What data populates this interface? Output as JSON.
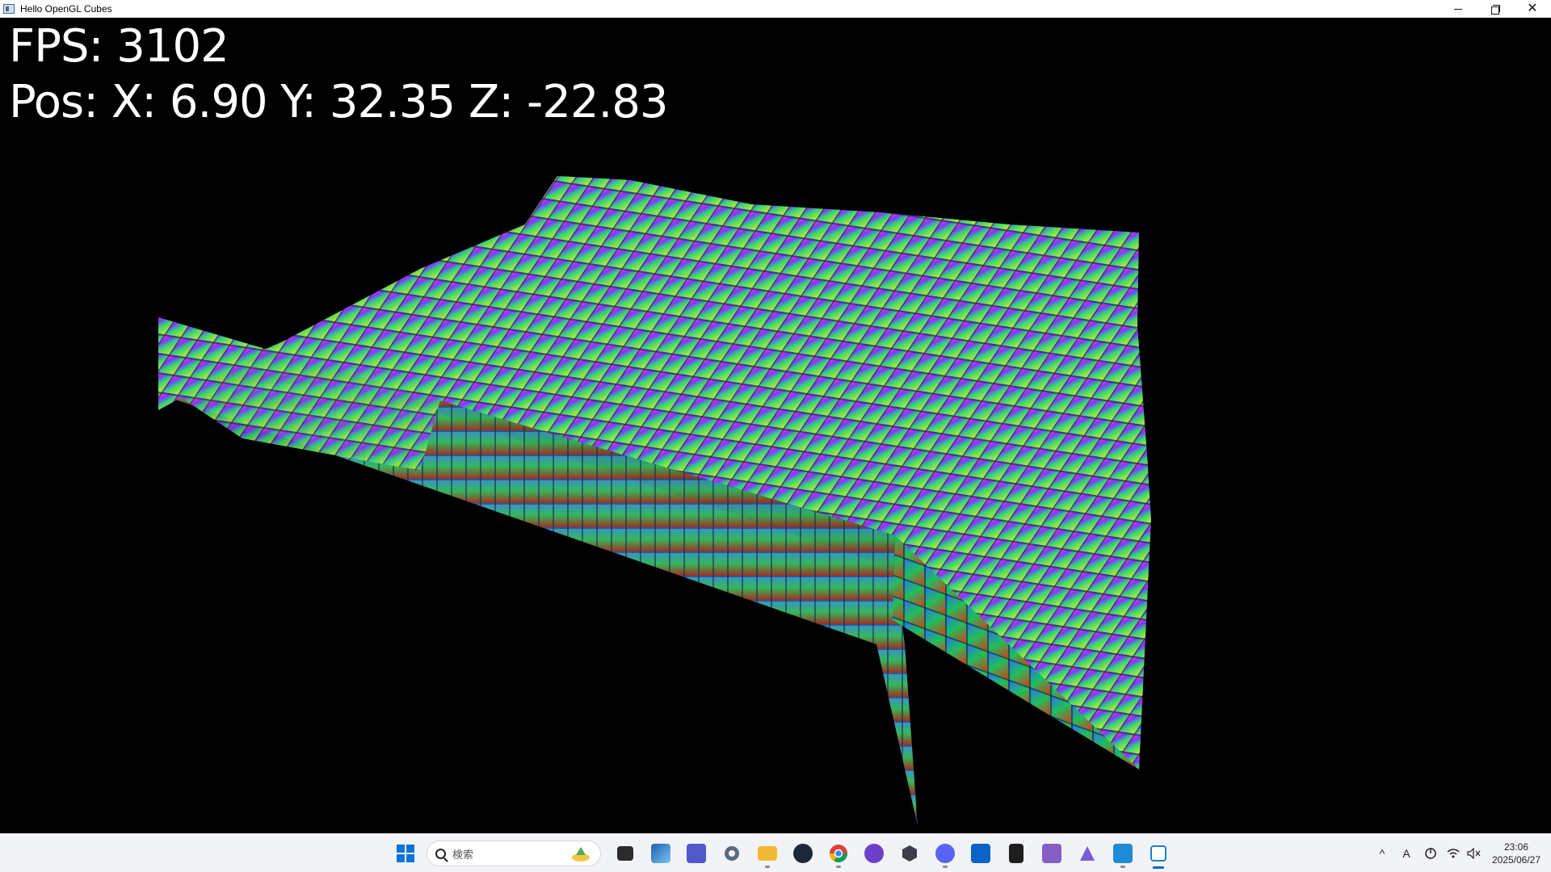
{
  "window": {
    "title": "Hello OpenGL Cubes",
    "controls": {
      "minimize": "—",
      "restore": "❐",
      "close": "✕"
    }
  },
  "hud": {
    "fps_label": "FPS: 3102",
    "pos_label": "Pos: X: 6.90 Y: 32.35 Z: -22.83"
  },
  "taskbar": {
    "search_placeholder": "検索",
    "apps": [
      {
        "name": "start",
        "icon": "windows-logo-icon"
      },
      {
        "name": "file-manager-dark",
        "icon": "folder-dark-icon"
      },
      {
        "name": "photos",
        "icon": "photos-icon"
      },
      {
        "name": "teams",
        "icon": "teams-icon"
      },
      {
        "name": "settings",
        "icon": "gear-icon"
      },
      {
        "name": "file-explorer",
        "icon": "folder-icon"
      },
      {
        "name": "steam",
        "icon": "steam-icon"
      },
      {
        "name": "chrome",
        "icon": "chrome-icon"
      },
      {
        "name": "github-desktop",
        "icon": "github-icon"
      },
      {
        "name": "unity-hub",
        "icon": "unity-icon"
      },
      {
        "name": "discord",
        "icon": "discord-icon"
      },
      {
        "name": "outlook",
        "icon": "outlook-icon"
      },
      {
        "name": "terminal",
        "icon": "terminal-icon"
      },
      {
        "name": "visual-studio",
        "icon": "visual-studio-icon"
      },
      {
        "name": "affinity",
        "icon": "affinity-icon"
      },
      {
        "name": "vscode",
        "icon": "vscode-icon"
      },
      {
        "name": "opengl-app",
        "icon": "opengl-app-icon"
      }
    ],
    "tray": {
      "chevron": "^",
      "ime": "A",
      "wifi": "wifi-icon",
      "volume": "volume-muted-icon"
    },
    "clock": {
      "time": "23:06",
      "date": "2025/06/27"
    }
  },
  "colors": {
    "titlebar": "#ffffff",
    "viewport": "#000000",
    "taskbar": "#f1f3f6",
    "accent": "#0067c0"
  }
}
